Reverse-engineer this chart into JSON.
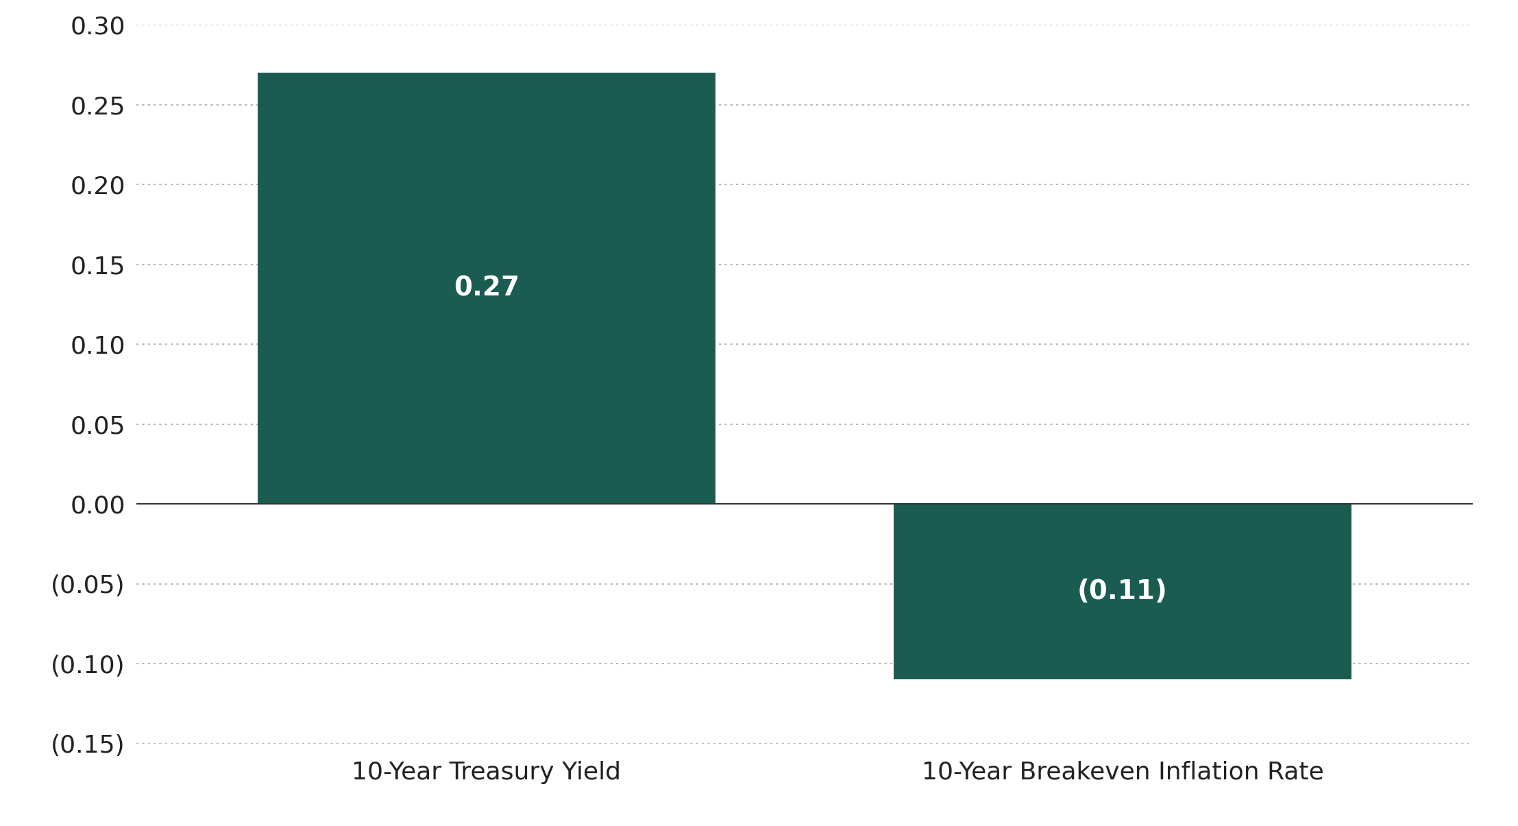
{
  "categories": [
    "10-Year Treasury Yield",
    "10-Year Breakeven Inflation Rate"
  ],
  "values": [
    0.27,
    -0.11
  ],
  "bar_color": "#1a5c52",
  "bar_labels": [
    "0.27",
    "(0.11)"
  ],
  "background_color": "#ffffff",
  "ylim": [
    -0.15,
    0.3
  ],
  "yticks": [
    -0.15,
    -0.1,
    -0.05,
    0.0,
    0.05,
    0.1,
    0.15,
    0.2,
    0.25,
    0.3
  ],
  "ytick_labels": [
    "(0.15)",
    "(0.10)",
    "(0.05)",
    "0.00",
    "0.05",
    "0.10",
    "0.15",
    "0.20",
    "0.25",
    "0.30"
  ],
  "bar_label_fontsize": 28,
  "tick_fontsize": 26,
  "xlabel_fontsize": 26,
  "bar_width": 0.72,
  "xlim": [
    -0.55,
    1.55
  ]
}
